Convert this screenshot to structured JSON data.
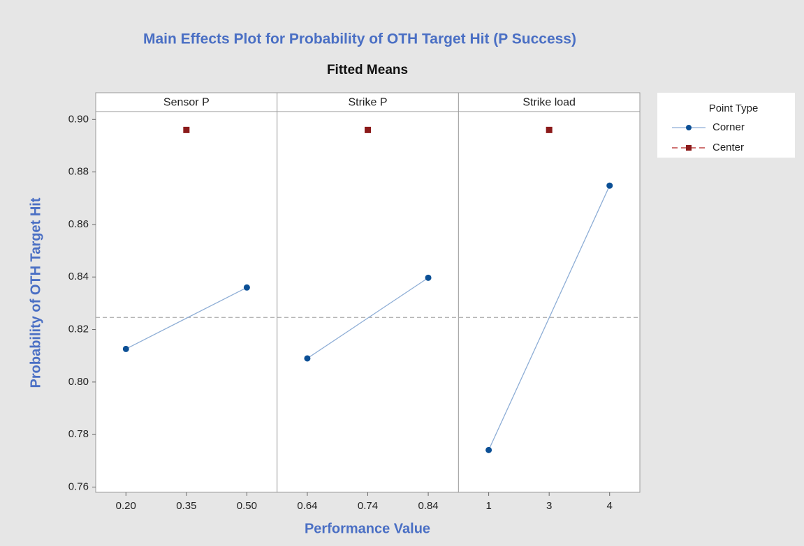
{
  "chart_data": {
    "type": "line",
    "title": "Main Effects Plot for Probability of OTH Target Hit (P Success)",
    "subtitle": "Fitted Means",
    "ylabel": "Probability of OTH Target Hit",
    "xlabel": "Performance Value",
    "ylim": [
      0.758,
      0.903
    ],
    "yticks": [
      0.76,
      0.78,
      {
        "value": 0.8,
        "label": "0.80"
      },
      0.82,
      0.84,
      0.86,
      0.88,
      {
        "value": 0.9,
        "label": "0.90"
      }
    ],
    "reference_line": 0.8246,
    "legend": {
      "title": "Point Type",
      "position": "right",
      "entries": [
        {
          "name": "Corner",
          "color": "#0b4f95",
          "line_color": "#8eaed6",
          "dash": "solid",
          "marker": "circle"
        },
        {
          "name": "Center",
          "color": "#8b1a1a",
          "line_color": "#b22222",
          "dash": "dashed",
          "marker": "square"
        }
      ]
    },
    "panels": [
      {
        "title": "Sensor P",
        "categories": [
          "0.20",
          "0.35",
          "0.50"
        ],
        "series": [
          {
            "x": [
              "0.20",
              "0.50"
            ],
            "values": [
              0.8126,
              0.836
            ]
          },
          {
            "x": [
              "0.35"
            ],
            "values": [
              0.896
            ]
          }
        ]
      },
      {
        "title": "Strike P",
        "categories": [
          "0.64",
          "0.74",
          "0.84"
        ],
        "series": [
          {
            "x": [
              "0.64",
              "0.84"
            ],
            "values": [
              0.809,
              0.8397
            ]
          },
          {
            "x": [
              "0.74"
            ],
            "values": [
              0.896
            ]
          }
        ]
      },
      {
        "title": "Strike load",
        "categories": [
          "1",
          "3",
          "4"
        ],
        "series": [
          {
            "x": [
              "1",
              "4"
            ],
            "values": [
              0.7741,
              0.8748
            ]
          },
          {
            "x": [
              "3"
            ],
            "values": [
              0.896
            ]
          }
        ]
      }
    ]
  }
}
